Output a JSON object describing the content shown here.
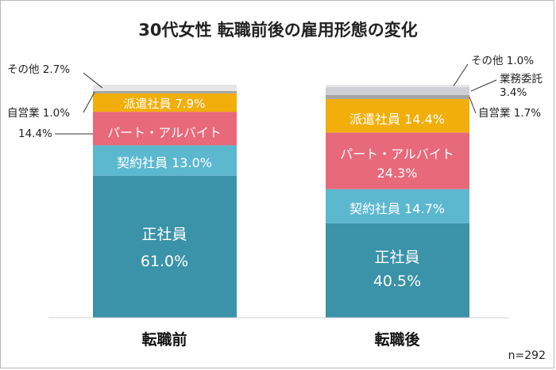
{
  "chart_data": {
    "type": "bar",
    "stacked": true,
    "title": "30代女性 転職前後の雇用形態の変化",
    "categories": [
      "転職前",
      "転職後"
    ],
    "series": [
      {
        "name": "正社員",
        "values": [
          61.0,
          40.5
        ],
        "color": "#3a93a8"
      },
      {
        "name": "契約社員",
        "values": [
          13.0,
          14.7
        ],
        "color": "#5cb8cf"
      },
      {
        "name": "パート・アルバイト",
        "values": [
          14.4,
          24.3
        ],
        "color": "#e8697a"
      },
      {
        "name": "派遣社員",
        "values": [
          7.9,
          14.4
        ],
        "color": "#f2ae0a"
      },
      {
        "name": "自営業",
        "values": [
          1.0,
          1.7
        ],
        "color": "#a3a3a3"
      },
      {
        "name": "業務委託",
        "values": [
          0,
          3.4
        ],
        "color": "#cfcfd6"
      },
      {
        "name": "その他",
        "values": [
          2.7,
          1.0
        ],
        "color": "#e6e6e6"
      }
    ],
    "labels": {
      "before": {
        "seishain_name": "正社員",
        "seishain_value": "61.0%",
        "keiyaku": "契約社員 13.0%",
        "part": "パート・アルバイト",
        "part_value": "14.4%",
        "haken": "派遣社員 7.9%",
        "jieigyo": "自営業 1.0%",
        "sonota": "その他 2.7%"
      },
      "after": {
        "seishain_name": "正社員",
        "seishain_value": "40.5%",
        "keiyaku": "契約社員 14.7%",
        "part": "パート・アルバイト",
        "part_value": "24.3%",
        "haken": "派遣社員 14.4%",
        "jieigyo": "自営業 1.7%",
        "gyomu_name": "業務委託",
        "gyomu_value": "3.4%",
        "sonota": "その他 1.0%"
      }
    },
    "sample_size": "n=292",
    "ylim": [
      0,
      100
    ],
    "grid": false,
    "legend": "none"
  }
}
